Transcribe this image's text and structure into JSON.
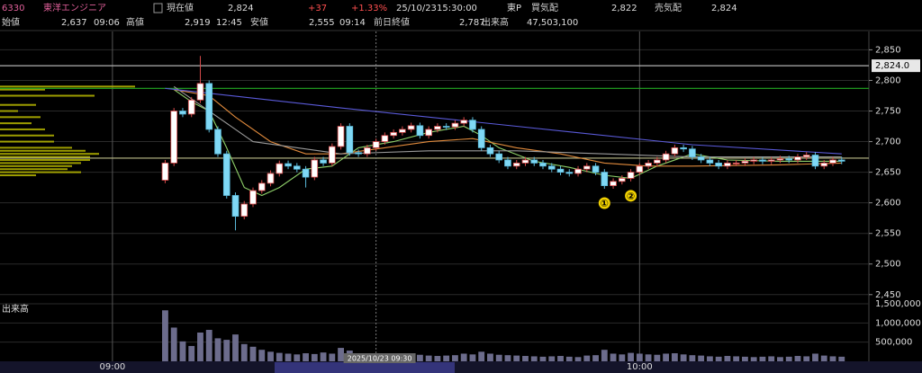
{
  "header": {
    "code": "6330",
    "name": "東洋エンジニア",
    "price_label": "現在値",
    "price": "2,824",
    "change": "+37",
    "change_pct": "+1.33%",
    "date": "25/10/23",
    "time": "15:30:00",
    "market": "東P",
    "bid_label": "買気配",
    "bid": "2,822",
    "ask_label": "売気配",
    "ask": "2,824",
    "open_label": "始値",
    "open": "2,637",
    "open_time": "09:06",
    "high_label": "高値",
    "high": "2,919",
    "high_time": "12:45",
    "low_label": "安値",
    "low": "2,555",
    "low_time": "09:14",
    "prev_label": "前日終値",
    "prev": "2,787",
    "volume_label": "出来高",
    "volume": "47,503,100"
  },
  "chart_data": {
    "type": "candlestick",
    "open": [
      2637,
      2665,
      2750,
      2745,
      2768,
      2795,
      2720,
      2680,
      2612,
      2578,
      2598,
      2620,
      2632,
      2648,
      2664,
      2660,
      2655,
      2642,
      2670,
      2665,
      2692,
      2725,
      2682,
      2680,
      2690,
      2700,
      2710,
      2715,
      2720,
      2726,
      2710,
      2720,
      2725,
      2724,
      2730,
      2735,
      2720,
      2690,
      2680,
      2670,
      2660,
      2665,
      2670,
      2665,
      2660,
      2655,
      2650,
      2648,
      2655,
      2660,
      2650,
      2628,
      2635,
      2640,
      2650,
      2660,
      2665,
      2670,
      2680,
      2690,
      2688,
      2675,
      2670,
      2665,
      2660,
      2665,
      2665,
      2668,
      2670,
      2668,
      2670,
      2672,
      2670,
      2675,
      2678,
      2660,
      2665,
      2670
    ],
    "high": [
      2670,
      2755,
      2755,
      2773,
      2840,
      2800,
      2725,
      2685,
      2617,
      2603,
      2625,
      2637,
      2653,
      2669,
      2669,
      2665,
      2660,
      2675,
      2675,
      2697,
      2730,
      2730,
      2687,
      2695,
      2705,
      2715,
      2720,
      2725,
      2731,
      2731,
      2725,
      2730,
      2730,
      2735,
      2740,
      2740,
      2725,
      2695,
      2685,
      2675,
      2670,
      2675,
      2675,
      2670,
      2665,
      2660,
      2655,
      2660,
      2665,
      2665,
      2655,
      2640,
      2645,
      2655,
      2665,
      2670,
      2675,
      2685,
      2695,
      2695,
      2693,
      2680,
      2675,
      2670,
      2670,
      2670,
      2673,
      2675,
      2675,
      2675,
      2677,
      2677,
      2680,
      2683,
      2683,
      2670,
      2675,
      2675
    ],
    "low": [
      2632,
      2660,
      2740,
      2740,
      2763,
      2715,
      2675,
      2607,
      2555,
      2573,
      2593,
      2615,
      2627,
      2643,
      2655,
      2650,
      2625,
      2637,
      2660,
      2660,
      2687,
      2677,
      2675,
      2675,
      2685,
      2695,
      2705,
      2710,
      2715,
      2705,
      2705,
      2715,
      2719,
      2719,
      2725,
      2715,
      2685,
      2675,
      2665,
      2655,
      2655,
      2660,
      2660,
      2655,
      2650,
      2645,
      2643,
      2643,
      2650,
      2645,
      2623,
      2623,
      2630,
      2635,
      2645,
      2655,
      2660,
      2665,
      2675,
      2683,
      2670,
      2665,
      2660,
      2655,
      2655,
      2660,
      2660,
      2663,
      2663,
      2663,
      2665,
      2665,
      2665,
      2670,
      2655,
      2655,
      2660,
      2663
    ],
    "close": [
      2665,
      2750,
      2745,
      2768,
      2795,
      2720,
      2680,
      2612,
      2578,
      2598,
      2620,
      2632,
      2648,
      2664,
      2660,
      2655,
      2642,
      2670,
      2665,
      2692,
      2725,
      2682,
      2680,
      2690,
      2700,
      2710,
      2715,
      2720,
      2726,
      2710,
      2720,
      2725,
      2724,
      2730,
      2735,
      2720,
      2690,
      2680,
      2670,
      2660,
      2665,
      2670,
      2665,
      2660,
      2655,
      2650,
      2648,
      2655,
      2660,
      2650,
      2628,
      2635,
      2640,
      2650,
      2660,
      2665,
      2670,
      2680,
      2690,
      2688,
      2675,
      2670,
      2665,
      2660,
      2665,
      2665,
      2668,
      2670,
      2668,
      2670,
      2672,
      2670,
      2675,
      2678,
      2660,
      2665,
      2670,
      2668
    ],
    "up_color": "#ffffff",
    "up_edge": "#d84a4a",
    "down_color": "#7fd8f5",
    "down_edge": "#5ab8d8",
    "xlim": [
      -18.8,
      80.1
    ],
    "xticks": [
      {
        "value": -6,
        "label": "09:00"
      },
      {
        "value": 54,
        "label": "10:00"
      }
    ],
    "ylim": [
      2435,
      2880
    ],
    "yticks": [
      {
        "value": 2450,
        "label": "2,450"
      },
      {
        "value": 2500,
        "label": "2,500"
      },
      {
        "value": 2550,
        "label": "2,550"
      },
      {
        "value": 2600,
        "label": "2,600"
      },
      {
        "value": 2650,
        "label": "2,650"
      },
      {
        "value": 2700,
        "label": "2,700"
      },
      {
        "value": 2750,
        "label": "2,750"
      },
      {
        "value": 2800,
        "label": "2,800"
      },
      {
        "value": 2850,
        "label": "2,850"
      }
    ],
    "grid": true,
    "lines": [
      {
        "color": "#8fd16a",
        "x": [
          1,
          3,
          5,
          7,
          9,
          11,
          13,
          16,
          19,
          22,
          26,
          30,
          34,
          36,
          38,
          42,
          46,
          50,
          53,
          56,
          60,
          64,
          70,
          77
        ],
        "values": [
          2785,
          2765,
          2750,
          2690,
          2625,
          2612,
          2625,
          2655,
          2660,
          2690,
          2700,
          2715,
          2725,
          2710,
          2690,
          2668,
          2658,
          2645,
          2640,
          2660,
          2680,
          2670,
          2668,
          2668
        ]
      },
      {
        "color": "#e08a3c",
        "x": [
          1,
          5,
          8,
          12,
          16,
          20,
          25,
          30,
          35,
          40,
          45,
          50,
          55,
          60,
          70,
          77
        ],
        "values": [
          2785,
          2775,
          2740,
          2700,
          2680,
          2680,
          2690,
          2700,
          2705,
          2690,
          2680,
          2665,
          2660,
          2660,
          2662,
          2665
        ]
      },
      {
        "color": "#9a9a9a",
        "x": [
          1,
          10,
          20,
          30,
          40,
          50,
          60,
          77
        ],
        "values": [
          2790,
          2700,
          2680,
          2685,
          2685,
          2680,
          2675,
          2675
        ]
      },
      {
        "color": "#5a5ad8",
        "x": [
          0,
          20,
          40,
          60,
          77
        ],
        "values": [
          2787,
          2755,
          2725,
          2695,
          2680
        ]
      }
    ],
    "reference_lines": [
      {
        "value": 2824,
        "label": "2,824.0",
        "color": "#b0b0b0"
      },
      {
        "value": 2787,
        "color": "#22aa22"
      },
      {
        "value": 2673,
        "color": "#bdbd8a"
      }
    ],
    "annotations": [
      {
        "x": 50,
        "label": "①"
      },
      {
        "x": 53,
        "label": "②"
      }
    ],
    "crosshair": {
      "x": 24,
      "label": "2025/10/23 09:30"
    },
    "volume": {
      "title": "出来高",
      "color": "#6c6c8c",
      "ylim": [
        0,
        1500000
      ],
      "yticks": [
        {
          "value": 500000,
          "label": "500,000"
        },
        {
          "value": 1000000,
          "label": "1,000,000"
        },
        {
          "value": 1500000,
          "label": "1,500,000"
        }
      ],
      "values": [
        1330000,
        880000,
        520000,
        400000,
        750000,
        820000,
        600000,
        560000,
        700000,
        450000,
        380000,
        300000,
        250000,
        220000,
        200000,
        180000,
        210000,
        190000,
        230000,
        200000,
        350000,
        280000,
        180000,
        160000,
        150000,
        170000,
        160000,
        150000,
        180000,
        170000,
        150000,
        140000,
        150000,
        160000,
        200000,
        180000,
        250000,
        200000,
        170000,
        160000,
        150000,
        140000,
        130000,
        120000,
        130000,
        140000,
        120000,
        110000,
        150000,
        160000,
        300000,
        200000,
        180000,
        220000,
        200000,
        180000,
        170000,
        200000,
        210000,
        180000,
        160000,
        150000,
        130000,
        120000,
        140000,
        130000,
        120000,
        110000,
        120000,
        130000,
        110000,
        120000,
        140000,
        130000,
        200000,
        150000,
        130000,
        120000
      ]
    },
    "volume_profile": {
      "color": "#b8b800",
      "prices": [
        2790,
        2785,
        2775,
        2760,
        2750,
        2740,
        2730,
        2720,
        2710,
        2700,
        2690,
        2685,
        2680,
        2675,
        2670,
        2665,
        2660,
        2655,
        2650,
        2645
      ],
      "values": [
        150,
        50,
        105,
        40,
        20,
        45,
        35,
        50,
        60,
        60,
        80,
        95,
        110,
        100,
        100,
        90,
        80,
        75,
        90,
        40
      ]
    }
  }
}
